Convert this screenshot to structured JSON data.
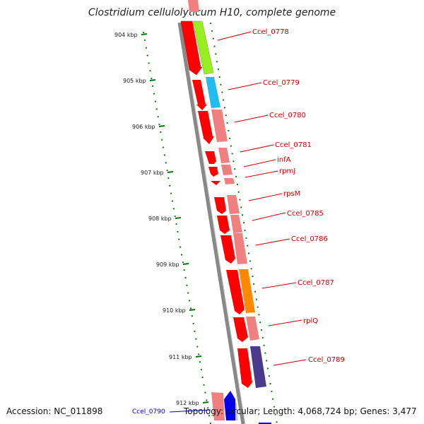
{
  "title": "Clostridium cellulolyticum H10, complete genome",
  "ticks": [
    "904 kbp",
    "905 kbp",
    "906 kbp",
    "907 kbp",
    "908 kbp",
    "909 kbp",
    "910 kbp",
    "911 kbp",
    "912 kbp"
  ],
  "genes": [
    "Ccel_0778",
    "Ccel_0779",
    "Ccel_0780",
    "Ccel_0781",
    "infA",
    "rpmJ",
    "rpsM",
    "Ccel_0785",
    "Ccel_0786",
    "Ccel_0787",
    "rplQ",
    "Ccel_0789"
  ],
  "footer": {
    "accession": "Accession: NC_011898",
    "extra_gene": "Ccel_0790",
    "topology": "Topology: circular; Length: 4,068,724 bp; Genes: 3,477"
  },
  "colors": {
    "forward": "#ff0000",
    "light": "#f08080",
    "green": "#99ee22",
    "cyan": "#22bbee",
    "orange": "#ff8800",
    "purple": "#4a3a8a",
    "blue": "#0000ee",
    "tick": "#007700",
    "backbone": "#888888"
  }
}
